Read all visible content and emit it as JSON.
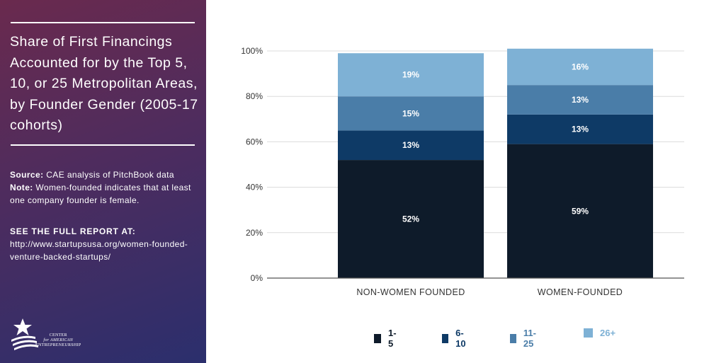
{
  "sidebar": {
    "title": "Share of First Financings Accounted for by the Top 5, 10, or 25 Metropolitan Areas, by Founder Gender (2005-17 cohorts)",
    "source_label": "Source:",
    "source_text": "CAE analysis of PitchBook data",
    "note_label": "Note:",
    "note_text": "Women-founded indicates that at least one company founder is female.",
    "report_heading": "SEE THE FULL REPORT AT:",
    "report_url": "http://www.startupsusa.org/women-founded-venture-backed-startups/",
    "logo_line1": "CENTER",
    "logo_line2": "for AMERICAN",
    "logo_line3": "ENTREPRENEURSHIP"
  },
  "chart_data": {
    "type": "bar",
    "stacked": true,
    "title": "Share of First Financings Accounted for by the Top 5, 10, or 25 Metropolitan Areas, by Founder Gender (2005-17 cohorts)",
    "categories": [
      "NON-WOMEN FOUNDED",
      "WOMEN-FOUNDED"
    ],
    "series": [
      {
        "name": "1-5",
        "values": [
          52,
          59
        ],
        "labels": [
          "52%",
          "59%"
        ],
        "color": "#0e1b2a"
      },
      {
        "name": "6-10",
        "values": [
          13,
          13
        ],
        "labels": [
          "13%",
          "13%"
        ],
        "color": "#0e3a66"
      },
      {
        "name": "11-25",
        "values": [
          15,
          13
        ],
        "labels": [
          "15%",
          "13%"
        ],
        "color": "#4a7da8"
      },
      {
        "name": "26+",
        "values": [
          19,
          16
        ],
        "labels": [
          "19%",
          "16%"
        ],
        "color": "#7eb1d5"
      }
    ],
    "yticks": [
      "0%",
      "20%",
      "40%",
      "60%",
      "80%",
      "100%"
    ],
    "ylim": [
      0,
      100
    ],
    "xlabel": "",
    "ylabel": "",
    "legend_position": "bottom",
    "grid": true
  }
}
